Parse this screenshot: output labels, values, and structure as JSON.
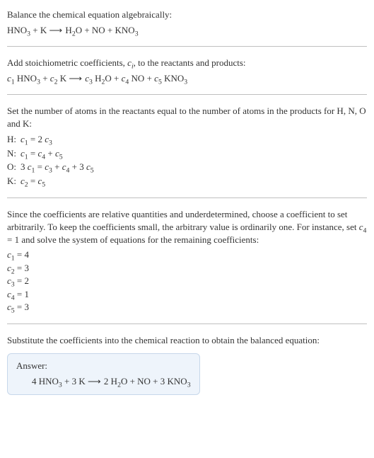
{
  "intro": {
    "line1": "Balance the chemical equation algebraically:",
    "eq_parts": [
      "HNO",
      "3",
      " + K  ",
      "⟶",
      "  H",
      "2",
      "O + NO + KNO",
      "3"
    ]
  },
  "stoich": {
    "line1_a": "Add stoichiometric coefficients, ",
    "line1_var": "c",
    "line1_sub": "i",
    "line1_b": ", to the reactants and products:",
    "eq_parts": [
      "c",
      "1",
      " HNO",
      "3",
      " + ",
      "c",
      "2",
      " K  ",
      "⟶",
      "  ",
      "c",
      "3",
      " H",
      "2",
      "O + ",
      "c",
      "4",
      " NO + ",
      "c",
      "5",
      " KNO",
      "3"
    ]
  },
  "atoms": {
    "lead": "Set the number of atoms in the reactants equal to the number of atoms in the products for H, N, O and K:",
    "rows": [
      {
        "label": "H:",
        "eq": [
          "c",
          "1",
          " = 2 ",
          "c",
          "3"
        ]
      },
      {
        "label": "N:",
        "eq": [
          "c",
          "1",
          " = ",
          "c",
          "4",
          " + ",
          "c",
          "5"
        ]
      },
      {
        "label": "O:",
        "eq": [
          "3 ",
          "c",
          "1",
          " = ",
          "c",
          "3",
          " + ",
          "c",
          "4",
          " + 3 ",
          "c",
          "5"
        ]
      },
      {
        "label": "K:",
        "eq": [
          "c",
          "2",
          " = ",
          "c",
          "5"
        ]
      }
    ]
  },
  "choose": {
    "text_a": "Since the coefficients are relative quantities and underdetermined, choose a coefficient to set arbitrarily. To keep the coefficients small, the arbitrary value is ordinarily one. For instance, set ",
    "var": "c",
    "sub": "4",
    "text_b": " = 1 and solve the system of equations for the remaining coefficients:",
    "coeffs": [
      {
        "var": "c",
        "sub": "1",
        "val": " = 4"
      },
      {
        "var": "c",
        "sub": "2",
        "val": " = 3"
      },
      {
        "var": "c",
        "sub": "3",
        "val": " = 2"
      },
      {
        "var": "c",
        "sub": "4",
        "val": " = 1"
      },
      {
        "var": "c",
        "sub": "5",
        "val": " = 3"
      }
    ]
  },
  "subst": "Substitute the coefficients into the chemical reaction to obtain the balanced equation:",
  "answer": {
    "title": "Answer:",
    "eq_parts": [
      "4 HNO",
      "3",
      " + 3 K  ",
      "⟶",
      "  2 H",
      "2",
      "O + NO + 3 KNO",
      "3"
    ]
  },
  "colors": {
    "separator": "#bfbfbf",
    "answer_bg": "#eef4fb",
    "answer_border": "#c7d7ea",
    "text": "#333333"
  }
}
